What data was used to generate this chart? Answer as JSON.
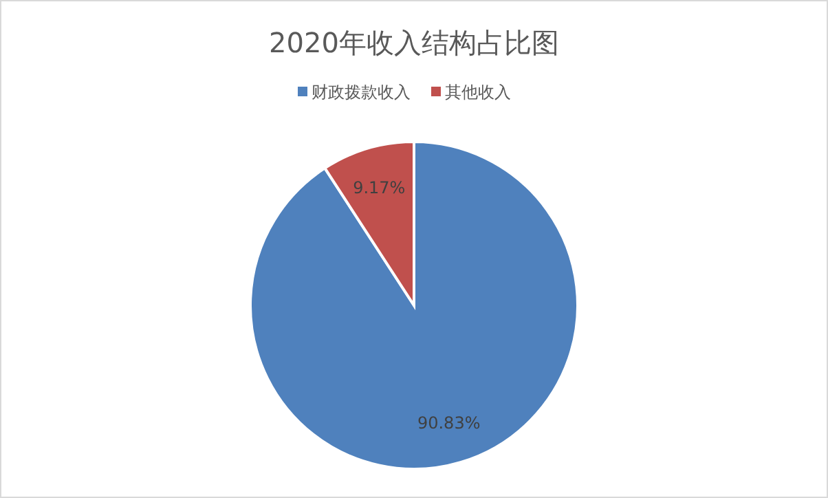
{
  "chart_data": {
    "type": "pie",
    "title": "2020年收入结构占比图",
    "categories": [
      "财政拨款收入",
      "其他收入"
    ],
    "values": [
      90.83,
      9.17
    ],
    "colors": [
      "#4f81bd",
      "#c0504d"
    ],
    "value_labels": [
      "90.83%",
      "9.17%"
    ],
    "legend": "top"
  }
}
